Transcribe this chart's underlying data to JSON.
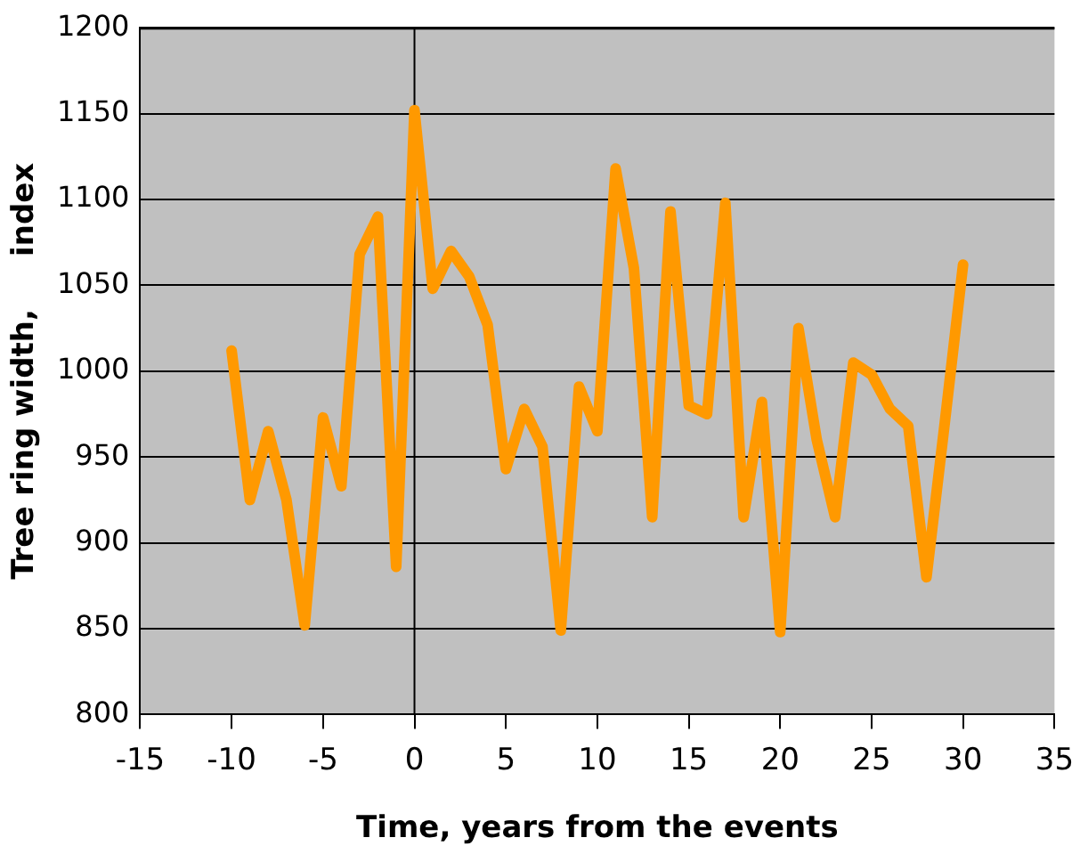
{
  "chart_data": {
    "type": "line",
    "xlabel": "Time, years from the events",
    "ylabel": "Tree ring width,     index",
    "x": [
      -10,
      -9,
      -8,
      -7,
      -6,
      -5,
      -4,
      -3,
      -2,
      -1,
      0,
      1,
      2,
      3,
      4,
      5,
      6,
      7,
      8,
      9,
      10,
      11,
      12,
      13,
      14,
      15,
      16,
      17,
      18,
      19,
      20,
      21,
      22,
      23,
      24,
      25,
      26,
      27,
      28,
      29,
      30
    ],
    "series": [
      {
        "color": "#ff9900",
        "values": [
          1012,
          925,
          965,
          925,
          852,
          973,
          933,
          1068,
          1090,
          886,
          1152,
          1048,
          1070,
          1055,
          1027,
          943,
          978,
          956,
          849,
          991,
          965,
          1118,
          1060,
          915,
          1093,
          980,
          975,
          1098,
          915,
          982,
          848,
          1025,
          960,
          915,
          1005,
          998,
          978,
          968,
          880,
          970,
          1062
        ]
      }
    ],
    "xlim": [
      -15,
      35
    ],
    "xticks": [
      -15,
      -10,
      -5,
      0,
      5,
      10,
      15,
      20,
      25,
      30,
      35
    ],
    "ylim": [
      800,
      1200
    ],
    "yticks": [
      800,
      850,
      900,
      950,
      1000,
      1050,
      1100,
      1150,
      1200
    ],
    "ref_lines": [
      {
        "axis": "x",
        "value": 0,
        "color": "#000000"
      }
    ],
    "grid": "y",
    "legend": false,
    "marker": "none",
    "line_style": "solid"
  }
}
